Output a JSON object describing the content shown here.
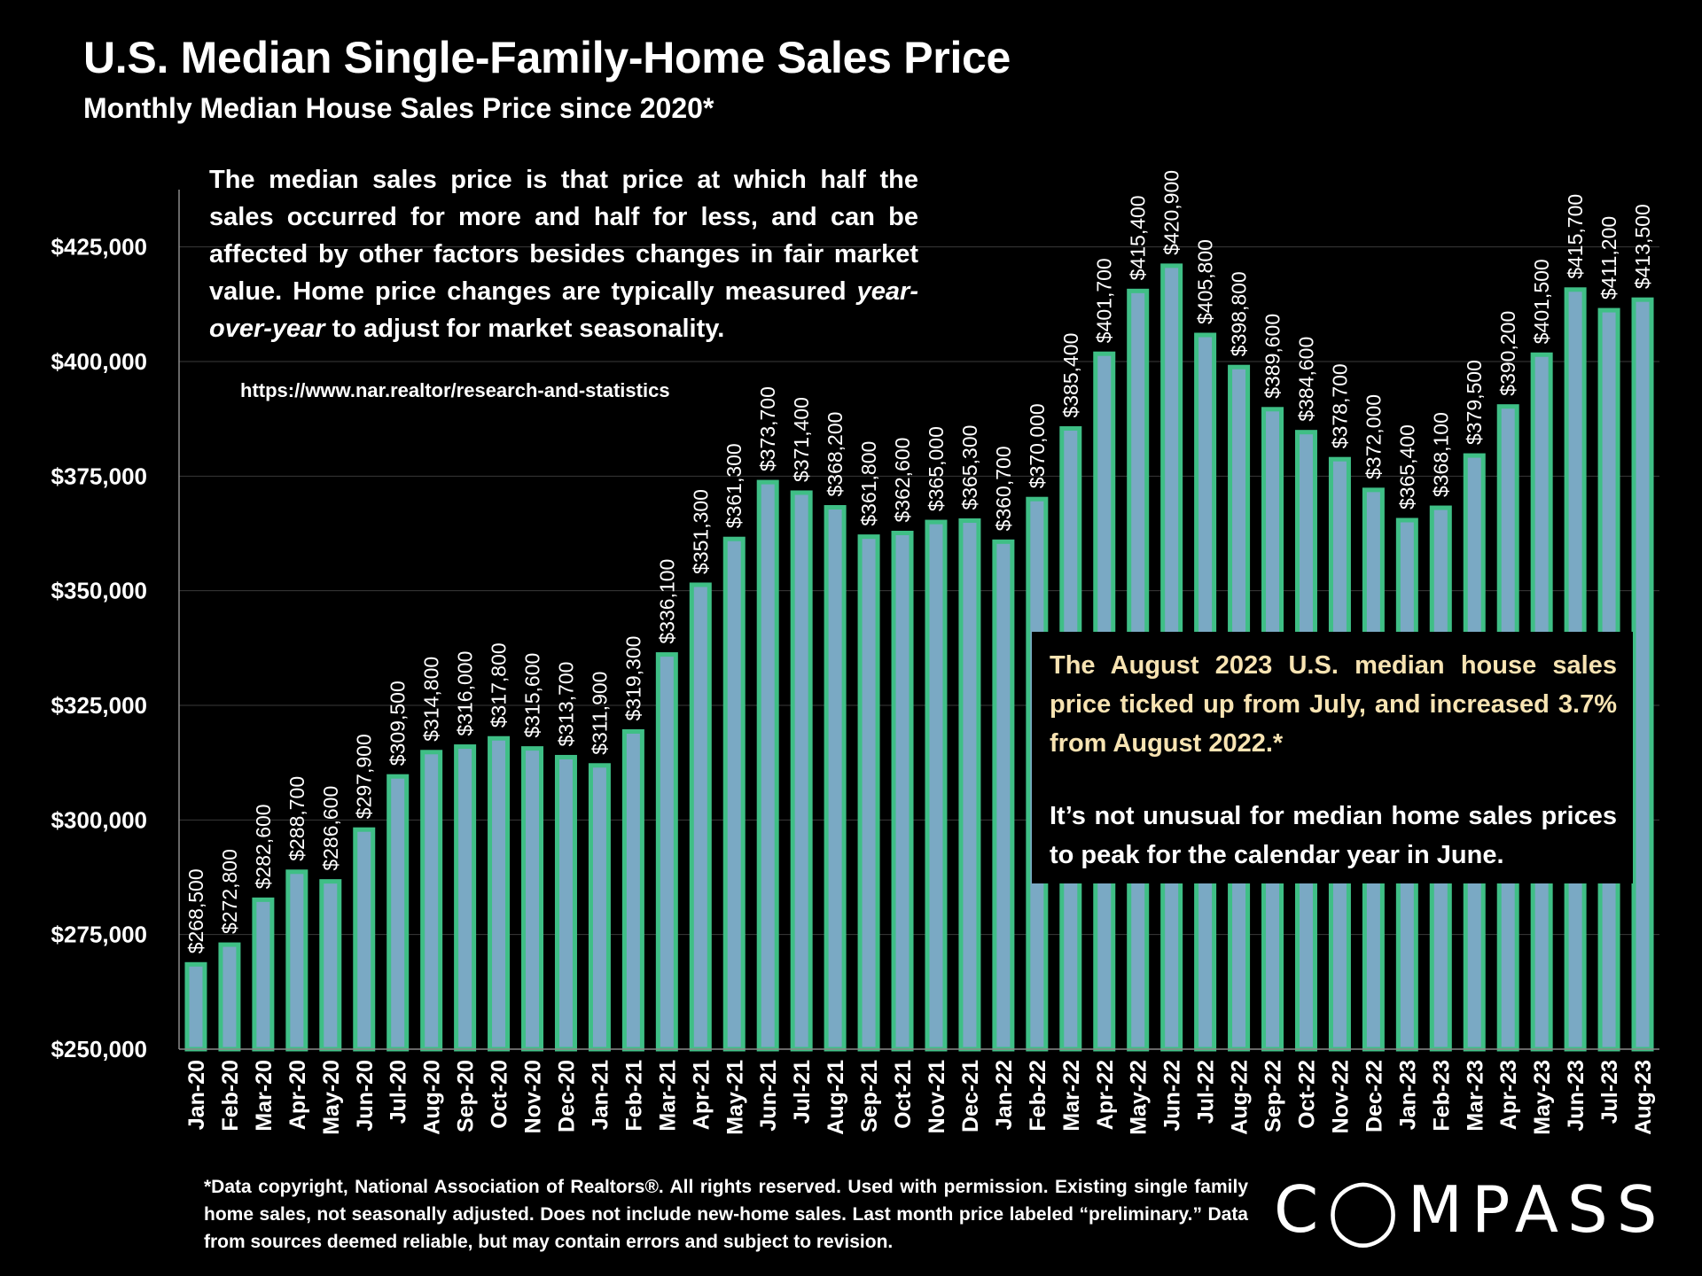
{
  "header": {
    "title": "U.S. Median Single-Family-Home Sales Price",
    "subtitle": "Monthly Median House Sales Price since 2020*"
  },
  "note": {
    "text_before": "The median sales price is that price at which half the sales occurred for more and half for less, and can be affected by other factors besides changes in fair market value. Home price changes are typically measured ",
    "text_em": "year-over-year",
    "text_after": " to adjust for market seasonality.",
    "source": "https://www.nar.realtor/research-and-statistics"
  },
  "callout": {
    "highlight": "The August 2023 U.S. median house sales price ticked up from July, and increased 3.7% from August 2022.*",
    "body": "It’s not unusual for median home sales prices to peak for the calendar year in June."
  },
  "footnote": "*Data copyright, National Association of Realtors®. All rights reserved. Used with permission. Existing single family home sales, not seasonally adjusted. Does not include new-home sales. Last month price labeled “preliminary.” Data from sources deemed reliable, but may contain errors and subject to revision.",
  "logo": "COMPASS",
  "colors": {
    "bar_fill": "#7aa9c4",
    "bar_outline": "#3fbf86",
    "background": "#000000",
    "highlight_text": "#f7e3b2"
  },
  "chart_data": {
    "type": "bar",
    "title": "U.S. Median Single-Family-Home Sales Price",
    "subtitle": "Monthly Median House Sales Price since 2020*",
    "xlabel": "",
    "ylabel": "",
    "ylim": [
      250000,
      437500
    ],
    "yticks": [
      250000,
      275000,
      300000,
      325000,
      350000,
      375000,
      400000,
      425000
    ],
    "ytick_labels": [
      "$250,000",
      "$275,000",
      "$300,000",
      "$325,000",
      "$350,000",
      "$375,000",
      "$400,000",
      "$425,000"
    ],
    "grid": true,
    "legend": "none",
    "categories": [
      "Jan-20",
      "Feb-20",
      "Mar-20",
      "Apr-20",
      "May-20",
      "Jun-20",
      "Jul-20",
      "Aug-20",
      "Sep-20",
      "Oct-20",
      "Nov-20",
      "Dec-20",
      "Jan-21",
      "Feb-21",
      "Mar-21",
      "Apr-21",
      "May-21",
      "Jun-21",
      "Jul-21",
      "Aug-21",
      "Sep-21",
      "Oct-21",
      "Nov-21",
      "Dec-21",
      "Jan-22",
      "Feb-22",
      "Mar-22",
      "Apr-22",
      "May-22",
      "Jun-22",
      "Jul-22",
      "Aug-22",
      "Sep-22",
      "Oct-22",
      "Nov-22",
      "Dec-22",
      "Jan-23",
      "Feb-23",
      "Mar-23",
      "Apr-23",
      "May-23",
      "Jun-23",
      "Jul-23",
      "Aug-23"
    ],
    "values": [
      268500,
      272800,
      282600,
      288700,
      286600,
      297900,
      309500,
      314800,
      316000,
      317800,
      315600,
      313700,
      311900,
      319300,
      336100,
      351300,
      361300,
      373700,
      371400,
      368200,
      361800,
      362600,
      365000,
      365300,
      360700,
      370000,
      385400,
      401700,
      415400,
      420900,
      405800,
      398800,
      389600,
      384600,
      378700,
      372000,
      365400,
      368100,
      379500,
      390200,
      401500,
      415700,
      411200,
      413500
    ],
    "value_labels": [
      "$268,500",
      "$272,800",
      "$282,600",
      "$288,700",
      "$286,600",
      "$297,900",
      "$309,500",
      "$314,800",
      "$316,000",
      "$317,800",
      "$315,600",
      "$313,700",
      "$311,900",
      "$319,300",
      "$336,100",
      "$351,300",
      "$361,300",
      "$373,700",
      "$371,400",
      "$368,200",
      "$361,800",
      "$362,600",
      "$365,000",
      "$365,300",
      "$360,700",
      "$370,000",
      "$385,400",
      "$401,700",
      "$415,400",
      "$420,900",
      "$405,800",
      "$398,800",
      "$389,600",
      "$384,600",
      "$378,700",
      "$372,000",
      "$365,400",
      "$368,100",
      "$379,500",
      "$390,200",
      "$401,500",
      "$415,700",
      "$411,200",
      "$413,500"
    ]
  }
}
